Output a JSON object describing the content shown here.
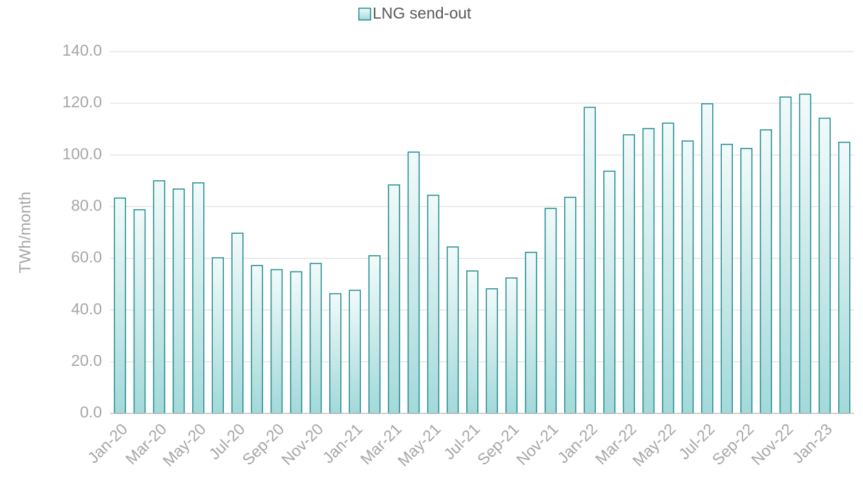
{
  "chart_data": {
    "type": "bar",
    "legend": "LNG send-out",
    "y_label": "TWh/month",
    "categories": [
      "Jan-20",
      null,
      "Mar-20",
      null,
      "May-20",
      null,
      "Jul-20",
      null,
      "Sep-20",
      null,
      "Nov-20",
      null,
      "Jan-21",
      null,
      "Mar-21",
      null,
      "May-21",
      null,
      "Jul-21",
      null,
      "Sep-21",
      null,
      "Nov-21",
      null,
      "Jan-22",
      null,
      "Mar-22",
      null,
      "May-22",
      null,
      "Jul-22",
      null,
      "Sep-22",
      null,
      "Nov-22",
      null,
      "Jan-23",
      null
    ],
    "values": [
      83.3,
      78.8,
      90.0,
      86.8,
      89.2,
      60.2,
      69.7,
      57.2,
      55.6,
      54.8,
      58.0,
      46.3,
      47.6,
      61.0,
      88.4,
      101.1,
      84.4,
      64.4,
      55.1,
      48.2,
      52.4,
      62.3,
      79.3,
      83.6,
      118.4,
      93.7,
      107.8,
      110.2,
      112.3,
      105.4,
      119.8,
      104.1,
      102.5,
      109.7,
      122.4,
      123.5,
      114.2,
      104.9
    ],
    "color": "#1f8b8d",
    "ylim": [
      0,
      140
    ],
    "yticks": [
      {
        "value": 0,
        "label": "0.0"
      },
      {
        "value": 20,
        "label": "20.0"
      },
      {
        "value": 40,
        "label": "40.0"
      },
      {
        "value": 60,
        "label": "60.0"
      },
      {
        "value": 80,
        "label": "80.0"
      },
      {
        "value": 100,
        "label": "100.0"
      },
      {
        "value": 120,
        "label": "120.0"
      },
      {
        "value": 140,
        "label": "140.0"
      }
    ],
    "grid": true,
    "legend_position": "top"
  }
}
